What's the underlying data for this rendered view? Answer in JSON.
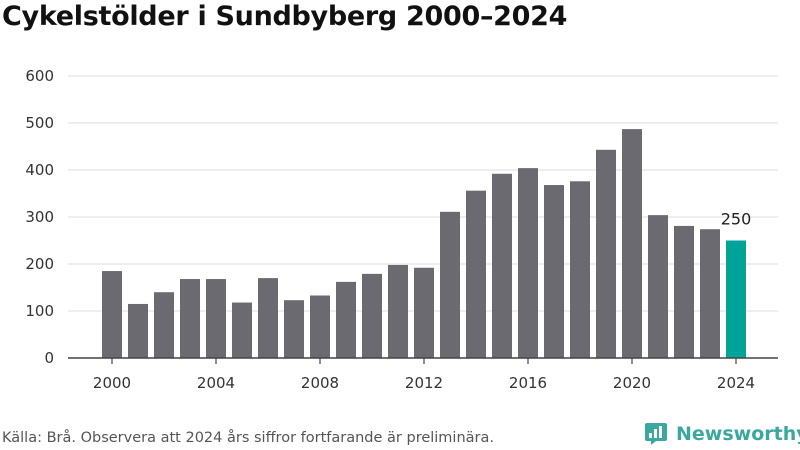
{
  "chart_data": {
    "type": "bar",
    "title": "Cykelstölder i Sundbyberg 2000–2024",
    "categories": [
      "2000",
      "2001",
      "2002",
      "2003",
      "2004",
      "2005",
      "2006",
      "2007",
      "2008",
      "2009",
      "2010",
      "2011",
      "2012",
      "2013",
      "2014",
      "2015",
      "2016",
      "2017",
      "2018",
      "2019",
      "2020",
      "2021",
      "2022",
      "2023",
      "2024"
    ],
    "values": [
      185,
      115,
      140,
      168,
      168,
      118,
      170,
      123,
      133,
      162,
      179,
      198,
      192,
      311,
      356,
      392,
      404,
      368,
      376,
      443,
      487,
      304,
      281,
      274,
      250
    ],
    "x_tick_labels": [
      "2000",
      "2004",
      "2008",
      "2012",
      "2016",
      "2020",
      "2024"
    ],
    "y_tick_labels": [
      "0",
      "100",
      "200",
      "300",
      "400",
      "500",
      "600"
    ],
    "ylim": [
      0,
      600
    ],
    "grid": true,
    "highlight": {
      "category": "2024",
      "label": "250"
    },
    "bar_color": "#6b6a71",
    "highlight_color": "#00a398"
  },
  "footer": {
    "source": "Källa: Brå. Observera att 2024 års siffror fortfarande är preliminära."
  },
  "brand": {
    "name": "Newsworthy",
    "icon": "newsworthy-logo-icon",
    "color": "#3aa89e"
  }
}
